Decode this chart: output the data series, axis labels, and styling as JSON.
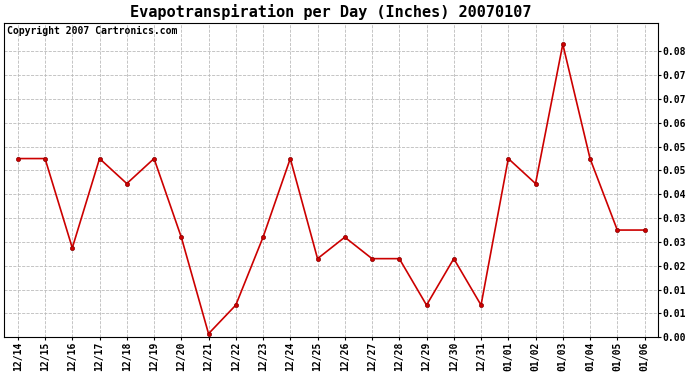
{
  "title": "Evapotranspiration per Day (Inches) 20070107",
  "copyright": "Copyright 2007 Cartronics.com",
  "labels": [
    "12/14",
    "12/15",
    "12/16",
    "12/17",
    "12/18",
    "12/19",
    "12/20",
    "12/21",
    "12/22",
    "12/23",
    "12/24",
    "12/25",
    "12/26",
    "12/27",
    "12/28",
    "12/29",
    "12/30",
    "12/31",
    "01/01",
    "01/02",
    "01/03",
    "01/04",
    "01/05",
    "01/06"
  ],
  "values": [
    0.05,
    0.05,
    0.025,
    0.05,
    0.043,
    0.05,
    0.028,
    0.001,
    0.009,
    0.028,
    0.05,
    0.022,
    0.028,
    0.022,
    0.022,
    0.009,
    0.022,
    0.009,
    0.05,
    0.043,
    0.082,
    0.05,
    0.03,
    0.03
  ],
  "line_color": "#cc0000",
  "marker": "o",
  "marker_size": 3,
  "background_color": "#ffffff",
  "plot_bg_color": "#ffffff",
  "grid_color": "#bbbbbb",
  "ylim_min": 0.0,
  "ylim_max": 0.088,
  "ytick_positions": [
    0.0,
    0.00667,
    0.01333,
    0.02,
    0.02667,
    0.03333,
    0.04,
    0.04667,
    0.05333,
    0.06,
    0.06667,
    0.07333,
    0.08
  ],
  "ytick_labels": [
    "0.00",
    "0.01",
    "0.01",
    "0.02",
    "0.03",
    "0.03",
    "0.04",
    "0.05",
    "0.05",
    "0.06",
    "0.07",
    "0.07",
    "0.08"
  ],
  "title_fontsize": 11,
  "tick_fontsize": 7,
  "copyright_fontsize": 7,
  "linewidth": 1.2
}
